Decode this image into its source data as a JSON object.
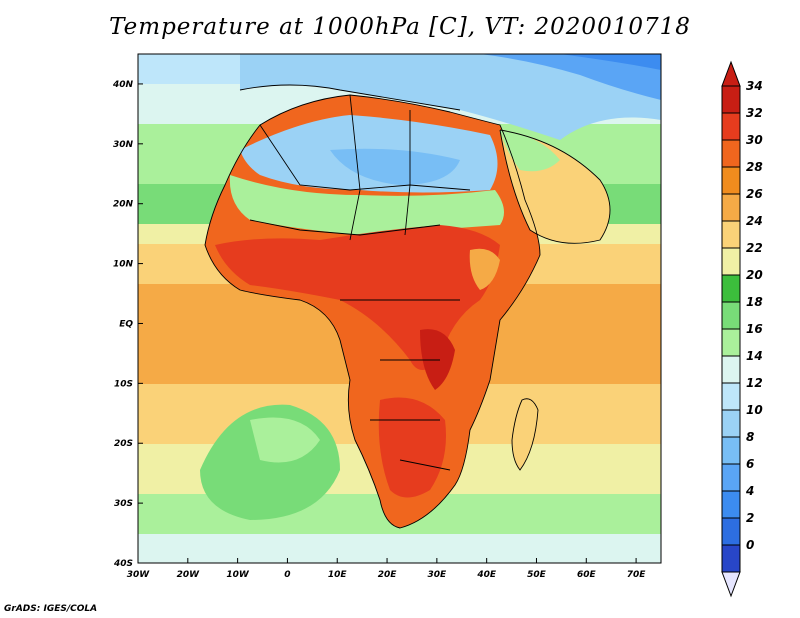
{
  "title": "Temperature at 1000hPa [C], VT: 2020010718",
  "credit": "GrADS: IGES/COLA",
  "map": {
    "extent": {
      "lon": [
        -30,
        75
      ],
      "lat": [
        -40,
        45
      ]
    },
    "lat_ticks": [
      {
        "value": 40,
        "label": "40N"
      },
      {
        "value": 30,
        "label": "30N"
      },
      {
        "value": 20,
        "label": "20N"
      },
      {
        "value": 10,
        "label": "10N"
      },
      {
        "value": 0,
        "label": "EQ"
      },
      {
        "value": -10,
        "label": "10S"
      },
      {
        "value": -20,
        "label": "20S"
      },
      {
        "value": -30,
        "label": "30S"
      },
      {
        "value": -40,
        "label": "40S"
      }
    ],
    "lon_ticks": [
      {
        "value": -30,
        "label": "30W"
      },
      {
        "value": -20,
        "label": "20W"
      },
      {
        "value": -10,
        "label": "10W"
      },
      {
        "value": 0,
        "label": "0"
      },
      {
        "value": 10,
        "label": "10E"
      },
      {
        "value": 20,
        "label": "20E"
      },
      {
        "value": 30,
        "label": "30E"
      },
      {
        "value": 40,
        "label": "40E"
      },
      {
        "value": 50,
        "label": "50E"
      },
      {
        "value": 60,
        "label": "60E"
      },
      {
        "value": 70,
        "label": "70E"
      }
    ]
  },
  "colorbar": {
    "levels": [
      "0",
      "2",
      "4",
      "6",
      "8",
      "10",
      "12",
      "14",
      "16",
      "18",
      "20",
      "22",
      "24",
      "26",
      "28",
      "30",
      "32",
      "34"
    ],
    "colors": [
      "#1e1e8c",
      "#2846c8",
      "#2d6ee1",
      "#3c8cf0",
      "#5aa5f5",
      "#78bef5",
      "#9bd2f5",
      "#bee6fa",
      "#dcf5f0",
      "#aaf09b",
      "#78dc78",
      "#3cbe3c",
      "#f0f0a5",
      "#fad278",
      "#f5aa46",
      "#f08c1e",
      "#f0661e",
      "#e63c1e",
      "#c81e14"
    ],
    "under_color": "#e6e6ff",
    "over_color": "#c81e14"
  }
}
